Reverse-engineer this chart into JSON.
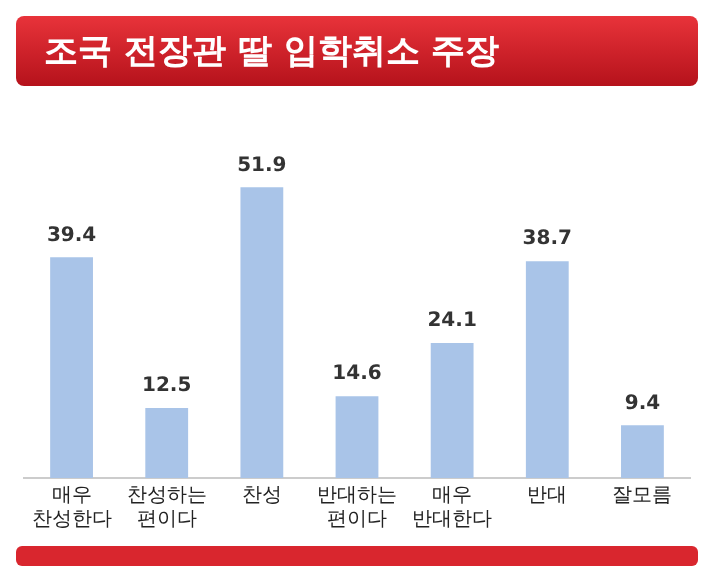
{
  "chart_data": {
    "type": "bar",
    "title": "조국 전장관 딸 입학취소 주장",
    "categories": [
      "매우 찬성한다",
      "찬성하는 편이다",
      "찬성",
      "반대하는 편이다",
      "매우 반대한다",
      "반대",
      "잘모름"
    ],
    "values": [
      39.4,
      12.5,
      51.9,
      14.6,
      24.1,
      38.7,
      9.4
    ],
    "color": "#a9c4e8",
    "data_labels": true,
    "grid": false,
    "legend": false
  }
}
